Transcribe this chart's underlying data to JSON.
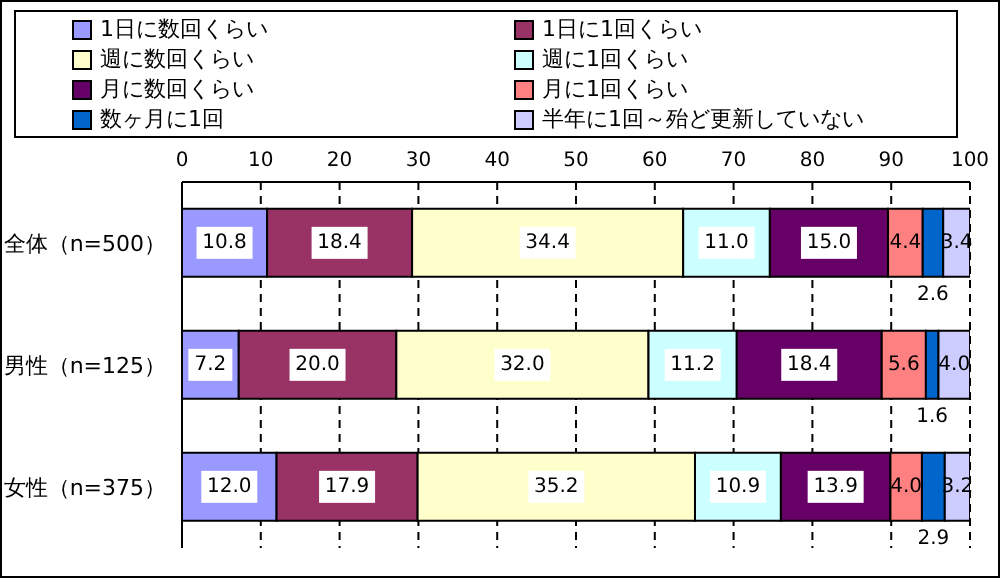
{
  "chart_data": {
    "type": "bar",
    "orientation": "horizontal",
    "stacked": true,
    "categories": [
      "全体（n=500）",
      "男性（n=125）",
      "女性（n=375）"
    ],
    "series": [
      {
        "name": "1日に数回くらい",
        "color": "#9999ff",
        "values": [
          10.8,
          7.2,
          12.0
        ],
        "value_labels": [
          "10.8",
          "7.2",
          "12.0"
        ]
      },
      {
        "name": "1日に1回くらい",
        "color": "#993366",
        "values": [
          18.4,
          20.0,
          17.9
        ],
        "value_labels": [
          "18.4",
          "20.0",
          "17.9"
        ]
      },
      {
        "name": "週に数回くらい",
        "color": "#ffffcc",
        "values": [
          34.4,
          32.0,
          35.2
        ],
        "value_labels": [
          "34.4",
          "32.0",
          "35.2"
        ]
      },
      {
        "name": "週に1回くらい",
        "color": "#ccffff",
        "values": [
          11.0,
          11.2,
          10.9
        ],
        "value_labels": [
          "11.0",
          "11.2",
          "10.9"
        ]
      },
      {
        "name": "月に数回くらい",
        "color": "#660066",
        "values": [
          15.0,
          18.4,
          13.9
        ],
        "value_labels": [
          "15.0",
          "18.4",
          "13.9"
        ]
      },
      {
        "name": "月に1回くらい",
        "color": "#ff8080",
        "values": [
          4.4,
          5.6,
          4.0
        ],
        "value_labels": [
          "4.4",
          "5.6",
          "4.0"
        ]
      },
      {
        "name": "数ヶ月に1回",
        "color": "#0066cc",
        "values": [
          2.6,
          1.6,
          2.9
        ],
        "value_labels": [
          "2.6",
          "1.6",
          "2.9"
        ]
      },
      {
        "name": "半年に1回～殆ど更新していない",
        "color": "#ccccff",
        "values": [
          3.4,
          4.0,
          3.2
        ],
        "value_labels": [
          "3.4",
          "4.0",
          "3.2"
        ]
      }
    ],
    "xlim": [
      0,
      100
    ],
    "xticks": [
      0,
      10,
      20,
      30,
      40,
      50,
      60,
      70,
      80,
      90,
      100
    ],
    "grid": "x",
    "legend": "top"
  }
}
